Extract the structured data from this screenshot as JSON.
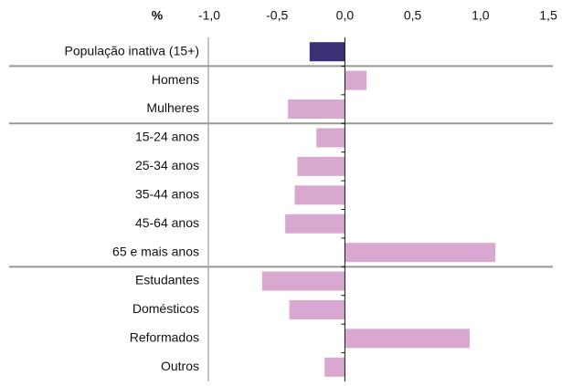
{
  "chart_data": {
    "type": "bar",
    "orientation": "horizontal",
    "x_label": "%",
    "categories": [
      "População inativa (15+)",
      "Homens",
      "Mulheres",
      "15-24 anos",
      "25-34 anos",
      "35-44 anos",
      "45-64 anos",
      "65 e mais anos",
      "Estudantes",
      "Domésticos",
      "Reformados",
      "Outros"
    ],
    "values": [
      -0.26,
      0.16,
      -0.42,
      -0.21,
      -0.35,
      -0.37,
      -0.44,
      1.11,
      -0.61,
      -0.41,
      0.92,
      -0.15
    ],
    "colors": [
      "#3b2f78",
      "#d9a8d0",
      "#d9a8d0",
      "#d9a8d0",
      "#d9a8d0",
      "#d9a8d0",
      "#d9a8d0",
      "#d9a8d0",
      "#d9a8d0",
      "#d9a8d0",
      "#d9a8d0",
      "#d9a8d0"
    ],
    "xlim": [
      -1.0,
      1.5
    ],
    "xticks": [
      {
        "value": -1.0,
        "label": "-1,0"
      },
      {
        "value": -0.5,
        "label": "-0,5"
      },
      {
        "value": 0,
        "label": "0,0"
      },
      {
        "value": 0.5,
        "label": "0,5"
      },
      {
        "value": 1.0,
        "label": "1,0"
      },
      {
        "value": 1.5,
        "label": "1,5"
      }
    ]
  }
}
